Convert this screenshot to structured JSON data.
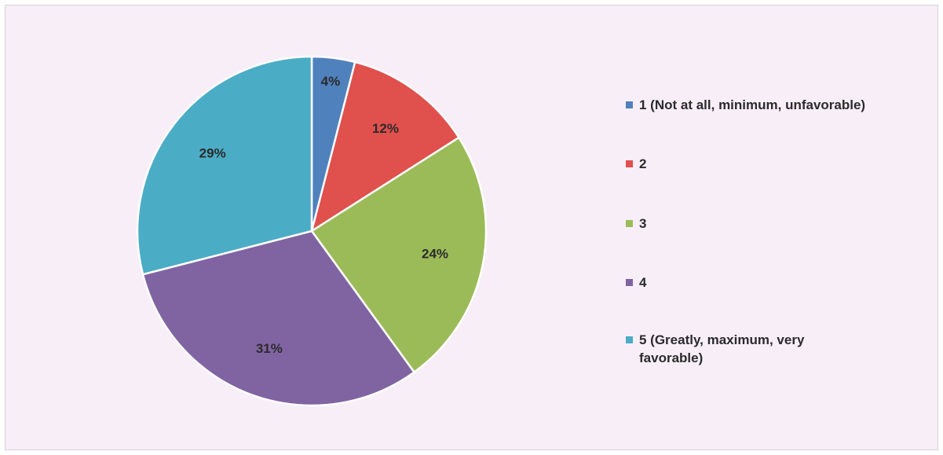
{
  "chart_data": {
    "type": "pie",
    "title": "",
    "slices": [
      {
        "label": "1 (Not at all, minimum, unfavorable)",
        "value": 4,
        "display": "4%",
        "color": "#4f81bd"
      },
      {
        "label": "2",
        "value": 12,
        "display": "12%",
        "color": "#e0504d"
      },
      {
        "label": "3",
        "value": 24,
        "display": "24%",
        "color": "#9bbb59"
      },
      {
        "label": "4",
        "value": 31,
        "display": "31%",
        "color": "#8064a2"
      },
      {
        "label": "5 (Greatly, maximum, very favorable)",
        "value": 29,
        "display": "29%",
        "color": "#4bacc6"
      }
    ],
    "legend_position": "right"
  }
}
